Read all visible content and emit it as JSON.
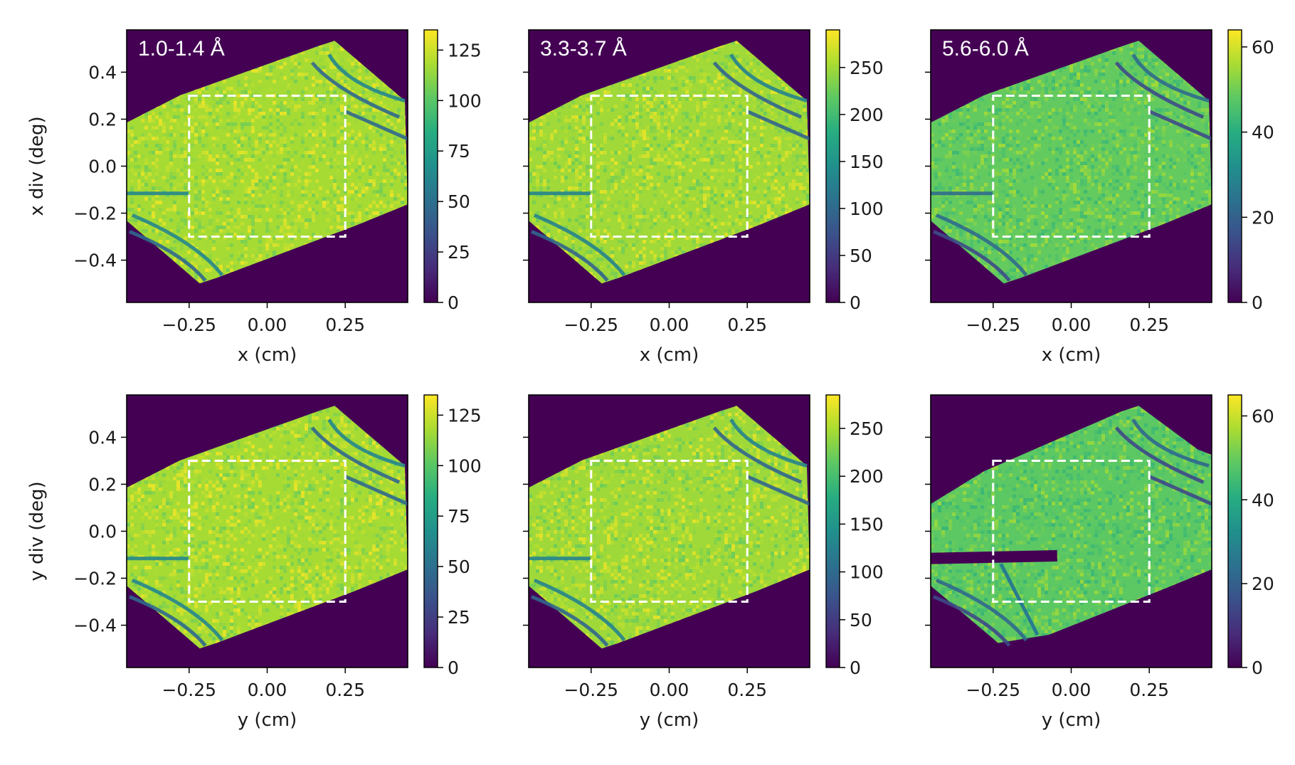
{
  "chart_data": [
    {
      "type": "heatmap",
      "panel_label": "1.0-1.4 Å",
      "xlabel": "x (cm)",
      "ylabel": "x div (deg)",
      "xlim": [
        -0.45,
        0.45
      ],
      "ylim": [
        -0.58,
        0.58
      ],
      "xticks": [
        -0.25,
        0.0,
        0.25
      ],
      "xtick_labels": [
        "−0.25",
        "0.00",
        "0.25"
      ],
      "yticks": [
        -0.4,
        -0.2,
        0.0,
        0.2,
        0.4
      ],
      "ytick_labels": [
        "−0.4",
        "−0.2",
        "0.0",
        "0.2",
        "0.4"
      ],
      "show_ytick_labels": true,
      "colorbar": {
        "range": [
          0,
          135
        ],
        "ticks": [
          0,
          25,
          50,
          75,
          100,
          125
        ],
        "tick_labels": [
          "0",
          "25",
          "50",
          "75",
          "100",
          "125"
        ],
        "colormap": "viridis"
      },
      "typical_intensity": 120,
      "roi_box": {
        "x": [
          -0.25,
          0.25
        ],
        "y": [
          -0.3,
          0.3
        ],
        "style": "white dashed"
      },
      "variant": "x"
    },
    {
      "type": "heatmap",
      "panel_label": "3.3-3.7 Å",
      "xlabel": "x (cm)",
      "ylabel": "",
      "xlim": [
        -0.45,
        0.45
      ],
      "ylim": [
        -0.58,
        0.58
      ],
      "xticks": [
        -0.25,
        0.0,
        0.25
      ],
      "xtick_labels": [
        "−0.25",
        "0.00",
        "0.25"
      ],
      "yticks": [
        -0.4,
        -0.2,
        0.0,
        0.2,
        0.4
      ],
      "ytick_labels": [
        "",
        "",
        "",
        "",
        ""
      ],
      "show_ytick_labels": false,
      "colorbar": {
        "range": [
          0,
          290
        ],
        "ticks": [
          0,
          50,
          100,
          150,
          200,
          250
        ],
        "tick_labels": [
          "0",
          "50",
          "100",
          "150",
          "200",
          "250"
        ],
        "colormap": "viridis"
      },
      "typical_intensity": 255,
      "roi_box": {
        "x": [
          -0.25,
          0.25
        ],
        "y": [
          -0.3,
          0.3
        ],
        "style": "white dashed"
      },
      "variant": "x"
    },
    {
      "type": "heatmap",
      "panel_label": "5.6-6.0 Å",
      "xlabel": "x (cm)",
      "ylabel": "",
      "xlim": [
        -0.45,
        0.45
      ],
      "ylim": [
        -0.58,
        0.58
      ],
      "xticks": [
        -0.25,
        0.0,
        0.25
      ],
      "xtick_labels": [
        "−0.25",
        "0.00",
        "0.25"
      ],
      "yticks": [
        -0.4,
        -0.2,
        0.0,
        0.2,
        0.4
      ],
      "ytick_labels": [
        "",
        "",
        "",
        "",
        ""
      ],
      "show_ytick_labels": false,
      "colorbar": {
        "range": [
          0,
          64
        ],
        "ticks": [
          0,
          20,
          40,
          60
        ],
        "tick_labels": [
          "0",
          "20",
          "40",
          "60"
        ],
        "colormap": "viridis"
      },
      "typical_intensity": 50,
      "roi_box": {
        "x": [
          -0.25,
          0.25
        ],
        "y": [
          -0.3,
          0.3
        ],
        "style": "white dashed"
      },
      "variant": "x"
    },
    {
      "type": "heatmap",
      "panel_label": "",
      "xlabel": "y (cm)",
      "ylabel": "y div (deg)",
      "xlim": [
        -0.45,
        0.45
      ],
      "ylim": [
        -0.58,
        0.58
      ],
      "xticks": [
        -0.25,
        0.0,
        0.25
      ],
      "xtick_labels": [
        "−0.25",
        "0.00",
        "0.25"
      ],
      "yticks": [
        -0.4,
        -0.2,
        0.0,
        0.2,
        0.4
      ],
      "ytick_labels": [
        "−0.4",
        "−0.2",
        "0.0",
        "0.2",
        "0.4"
      ],
      "show_ytick_labels": true,
      "colorbar": {
        "range": [
          0,
          135
        ],
        "ticks": [
          0,
          25,
          50,
          75,
          100,
          125
        ],
        "tick_labels": [
          "0",
          "25",
          "50",
          "75",
          "100",
          "125"
        ],
        "colormap": "viridis"
      },
      "typical_intensity": 120,
      "roi_box": {
        "x": [
          -0.25,
          0.25
        ],
        "y": [
          -0.3,
          0.3
        ],
        "style": "white dashed"
      },
      "variant": "y"
    },
    {
      "type": "heatmap",
      "panel_label": "",
      "xlabel": "y (cm)",
      "ylabel": "",
      "xlim": [
        -0.45,
        0.45
      ],
      "ylim": [
        -0.58,
        0.58
      ],
      "xticks": [
        -0.25,
        0.0,
        0.25
      ],
      "xtick_labels": [
        "−0.25",
        "0.00",
        "0.25"
      ],
      "yticks": [
        -0.4,
        -0.2,
        0.0,
        0.2,
        0.4
      ],
      "ytick_labels": [
        "",
        "",
        "",
        "",
        ""
      ],
      "show_ytick_labels": false,
      "colorbar": {
        "range": [
          0,
          285
        ],
        "ticks": [
          0,
          50,
          100,
          150,
          200,
          250
        ],
        "tick_labels": [
          "0",
          "50",
          "100",
          "150",
          "200",
          "250"
        ],
        "colormap": "viridis"
      },
      "typical_intensity": 250,
      "roi_box": {
        "x": [
          -0.25,
          0.25
        ],
        "y": [
          -0.3,
          0.3
        ],
        "style": "white dashed"
      },
      "variant": "y"
    },
    {
      "type": "heatmap",
      "panel_label": "",
      "xlabel": "y (cm)",
      "ylabel": "",
      "xlim": [
        -0.45,
        0.45
      ],
      "ylim": [
        -0.58,
        0.58
      ],
      "xticks": [
        -0.25,
        0.0,
        0.25
      ],
      "xtick_labels": [
        "−0.25",
        "0.00",
        "0.25"
      ],
      "yticks": [
        -0.4,
        -0.2,
        0.0,
        0.2,
        0.4
      ],
      "ytick_labels": [
        "",
        "",
        "",
        "",
        ""
      ],
      "show_ytick_labels": false,
      "colorbar": {
        "range": [
          0,
          65
        ],
        "ticks": [
          0,
          20,
          40,
          60
        ],
        "tick_labels": [
          "0",
          "20",
          "40",
          "60"
        ],
        "colormap": "viridis"
      },
      "typical_intensity": 50,
      "roi_box": {
        "x": [
          -0.25,
          0.25
        ],
        "y": [
          -0.3,
          0.3
        ],
        "style": "white dashed"
      },
      "variant": "y_long"
    }
  ]
}
